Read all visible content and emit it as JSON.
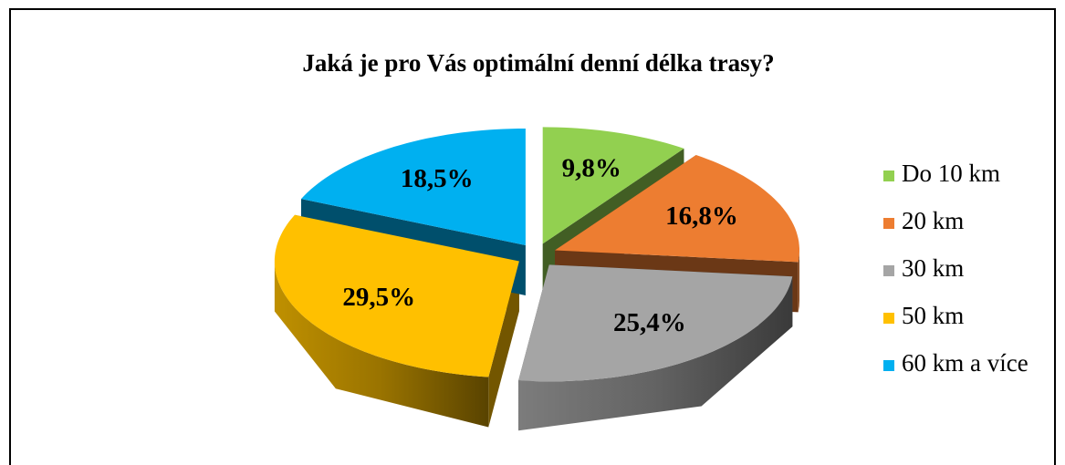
{
  "chart_data": {
    "type": "pie",
    "title": "Jaká je pro Vás optimální denní délka trasy?",
    "categories": [
      "Do 10 km",
      "20 km",
      "30 km",
      "50 km",
      "60 km a více"
    ],
    "values": [
      9.8,
      16.8,
      25.4,
      29.5,
      18.5
    ],
    "value_labels": [
      "9,8%",
      "16,8%",
      "25,4%",
      "29,5%",
      "18,5%"
    ],
    "colors": [
      "#92d050",
      "#ed7d31",
      "#a5a5a5",
      "#ffc000",
      "#00b0f0"
    ],
    "legend": "right"
  }
}
